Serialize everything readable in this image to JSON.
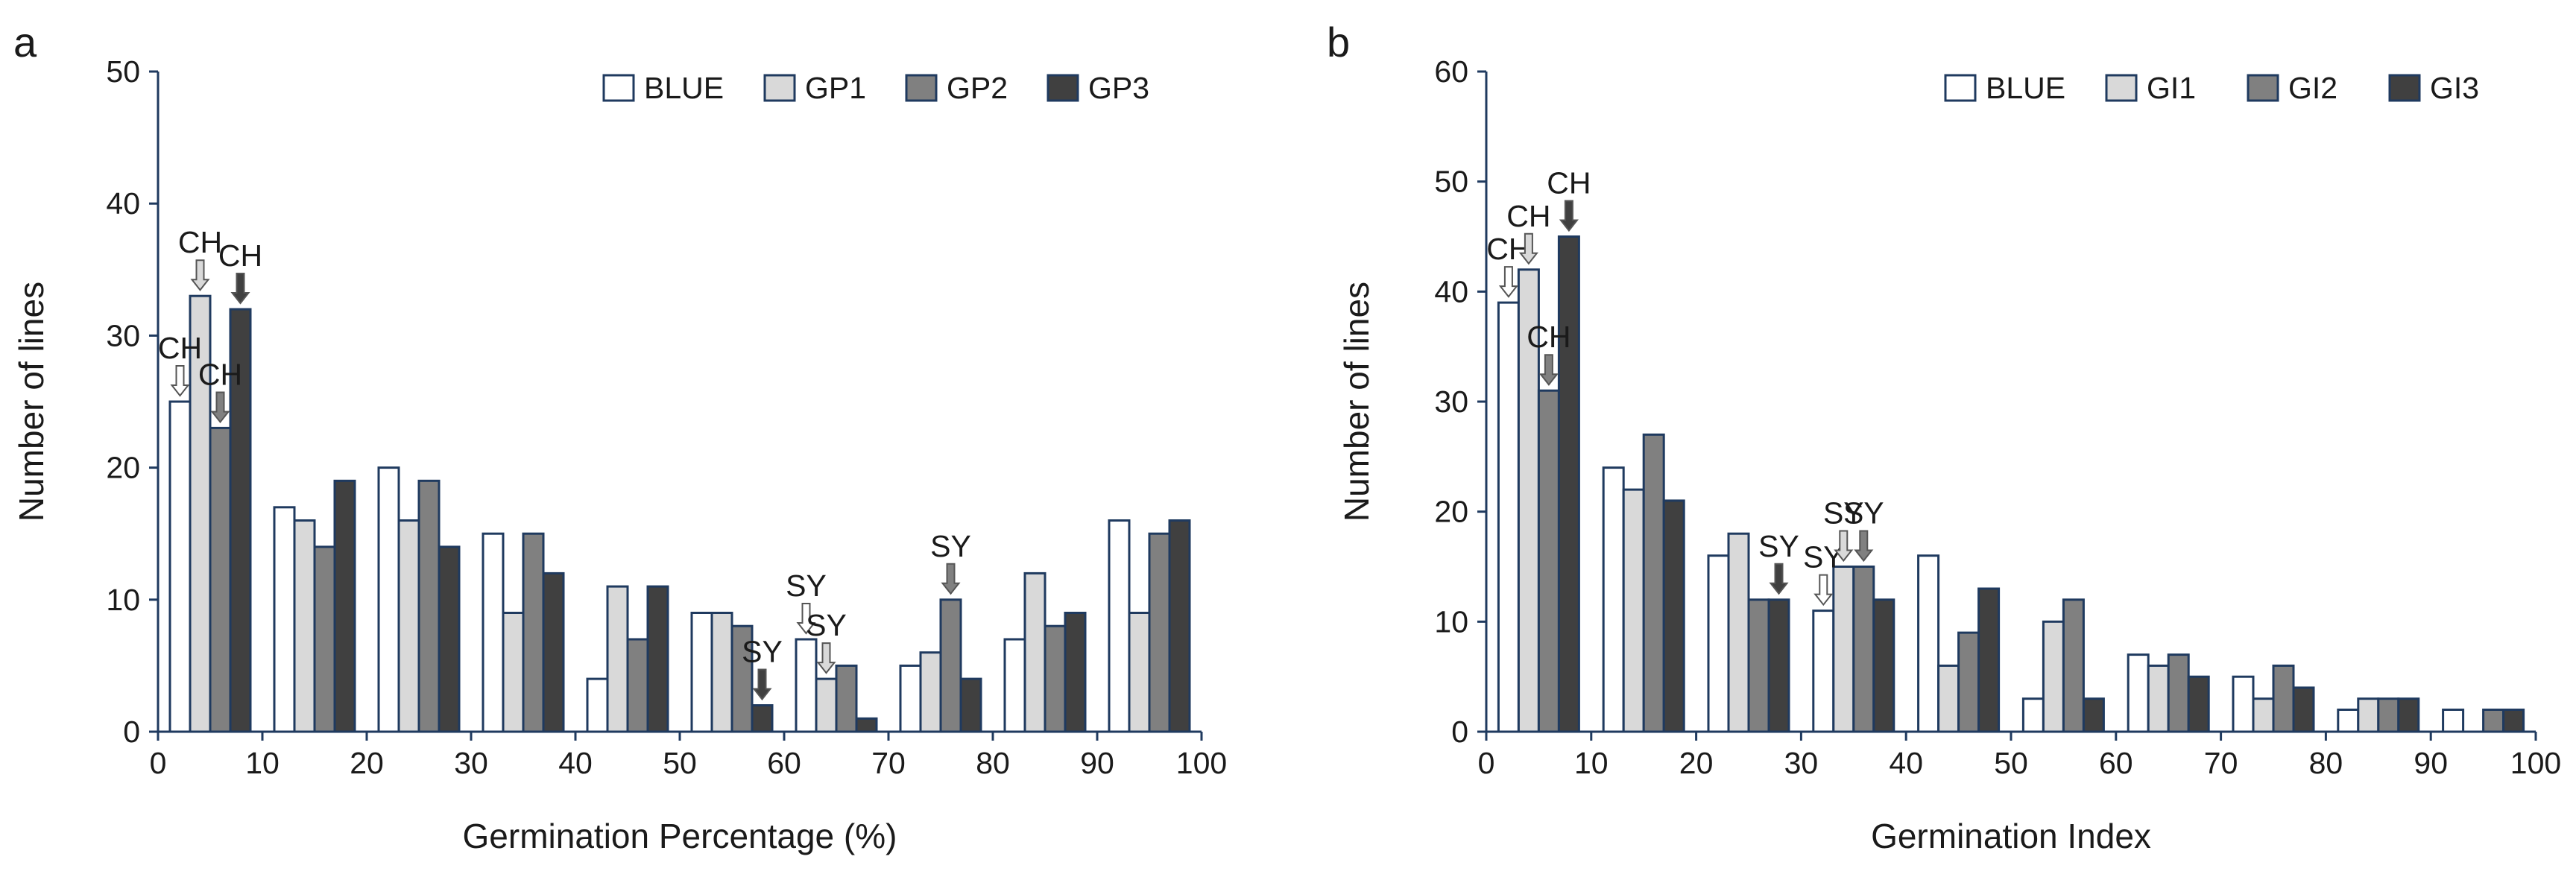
{
  "chart_data": [
    {
      "panel_label": "a",
      "type": "bar",
      "xlabel": "Germination Percentage (%)",
      "ylabel": "Number of lines",
      "xlim": [
        0,
        100
      ],
      "ylim": [
        0,
        50
      ],
      "x_ticks": [
        "0",
        "10",
        "20",
        "30",
        "40",
        "50",
        "60",
        "70",
        "80",
        "90",
        "100"
      ],
      "y_ticks": [
        "0",
        "10",
        "20",
        "30",
        "40",
        "50"
      ],
      "bin_centers": [
        5,
        15,
        25,
        35,
        45,
        55,
        65,
        75,
        85,
        95
      ],
      "legend_position": "top-right",
      "series": [
        {
          "name": "BLUE",
          "color": "#ffffff",
          "values": [
            25,
            17,
            20,
            15,
            4,
            9,
            7,
            5,
            7,
            16
          ]
        },
        {
          "name": "GP1",
          "color": "#d9d9d9",
          "values": [
            33,
            16,
            16,
            9,
            11,
            9,
            4,
            6,
            12,
            9
          ]
        },
        {
          "name": "GP2",
          "color": "#808080",
          "values": [
            23,
            14,
            19,
            15,
            7,
            8,
            5,
            10,
            8,
            15
          ]
        },
        {
          "name": "GP3",
          "color": "#404040",
          "values": [
            32,
            19,
            14,
            12,
            11,
            2,
            1,
            4,
            9,
            16
          ]
        }
      ],
      "annotations": [
        {
          "text": "CH",
          "series": 0,
          "bin": 0
        },
        {
          "text": "CH",
          "series": 1,
          "bin": 0
        },
        {
          "text": "CH",
          "series": 2,
          "bin": 0
        },
        {
          "text": "CH",
          "series": 3,
          "bin": 0
        },
        {
          "text": "SY",
          "series": 3,
          "bin": 5
        },
        {
          "text": "SY",
          "series": 0,
          "bin": 6
        },
        {
          "text": "SY",
          "series": 1,
          "bin": 6
        },
        {
          "text": "SY",
          "series": 2,
          "bin": 7
        }
      ]
    },
    {
      "panel_label": "b",
      "type": "bar",
      "xlabel": "Germination Index",
      "ylabel": "Number of lines",
      "xlim": [
        0,
        100
      ],
      "ylim": [
        0,
        60
      ],
      "x_ticks": [
        "0",
        "10",
        "20",
        "30",
        "40",
        "50",
        "60",
        "70",
        "80",
        "90",
        "100"
      ],
      "y_ticks": [
        "0",
        "10",
        "20",
        "30",
        "40",
        "50",
        "60"
      ],
      "bin_centers": [
        5,
        15,
        25,
        35,
        45,
        55,
        65,
        75,
        85,
        95
      ],
      "legend_position": "top-right",
      "series": [
        {
          "name": "BLUE",
          "color": "#ffffff",
          "values": [
            39,
            24,
            16,
            11,
            16,
            3,
            7,
            5,
            2,
            2
          ]
        },
        {
          "name": "GI1",
          "color": "#d9d9d9",
          "values": [
            42,
            22,
            18,
            15,
            6,
            10,
            6,
            3,
            3,
            0
          ]
        },
        {
          "name": "GI2",
          "color": "#808080",
          "values": [
            31,
            27,
            12,
            15,
            9,
            12,
            7,
            6,
            3,
            2
          ]
        },
        {
          "name": "GI3",
          "color": "#404040",
          "values": [
            45,
            21,
            12,
            12,
            13,
            3,
            5,
            4,
            3,
            2
          ]
        }
      ],
      "annotations": [
        {
          "text": "CH",
          "series": 0,
          "bin": 0
        },
        {
          "text": "CH",
          "series": 1,
          "bin": 0
        },
        {
          "text": "CH",
          "series": 2,
          "bin": 0
        },
        {
          "text": "CH",
          "series": 3,
          "bin": 0
        },
        {
          "text": "SY",
          "series": 3,
          "bin": 2
        },
        {
          "text": "SY",
          "series": 0,
          "bin": 3
        },
        {
          "text": "SY",
          "series": 1,
          "bin": 3
        },
        {
          "text": "SY",
          "series": 2,
          "bin": 3
        }
      ]
    }
  ]
}
